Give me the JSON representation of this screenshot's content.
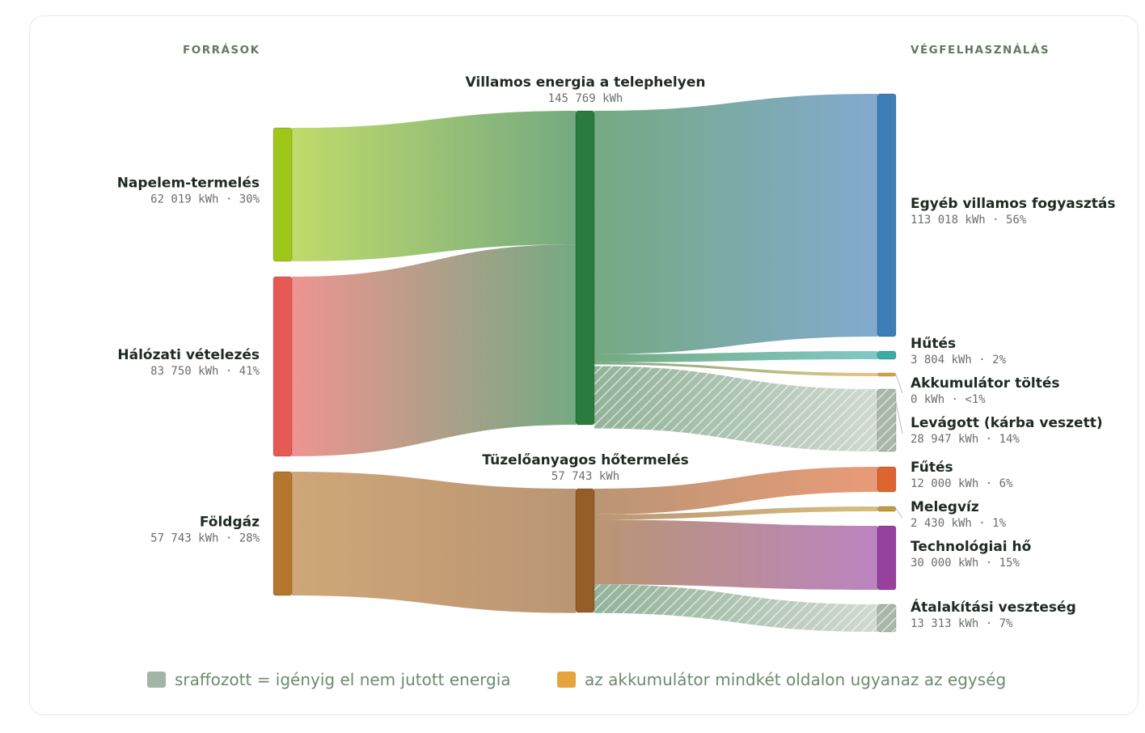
{
  "chart_data": {
    "type": "sankey",
    "unit": "kWh",
    "column_headers": {
      "left": "FORRÁSOK",
      "right": "VÉGFELHASZNÁLÁS"
    },
    "nodes": [
      {
        "id": "solar",
        "name": "Napelem-termelés",
        "value": 62019,
        "value_text": "62 019 kWh · 30%",
        "color": "#9ec71a",
        "column": "source"
      },
      {
        "id": "grid",
        "name": "Hálózati vételezés",
        "value": 83750,
        "value_text": "83 750 kWh · 41%",
        "color": "#e55a55",
        "column": "source"
      },
      {
        "id": "gas",
        "name": "Földgáz",
        "value": 57743,
        "value_text": "57 743 kWh · 28%",
        "color": "#b5762e",
        "column": "source"
      },
      {
        "id": "elec",
        "name": "Villamos energia a telephelyen",
        "value": 145769,
        "value_text": "145 769 kWh",
        "color": "#2a7c3e",
        "column": "hub"
      },
      {
        "id": "fuel",
        "name": "Tüzelőanyagos hőtermelés",
        "value": 57743,
        "value_text": "57 743 kWh",
        "color": "#955d28",
        "column": "hub"
      },
      {
        "id": "other",
        "name": "Egyéb villamos fogyasztás",
        "value": 113018,
        "value_text": "113 018 kWh · 56%",
        "color": "#3e7db5",
        "column": "end"
      },
      {
        "id": "cool",
        "name": "Hűtés",
        "value": 3804,
        "value_text": "3 804 kWh · 2%",
        "color": "#3aaba6",
        "column": "end"
      },
      {
        "id": "batt",
        "name": "Akkumulátor töltés",
        "value": 0,
        "value_text": "0 kWh · <1%",
        "color": "#d9a441",
        "column": "end"
      },
      {
        "id": "curt",
        "name": "Levágott (kárba veszett)",
        "value": 28947,
        "value_text": "28 947 kWh · 14%",
        "color": "#a8b8a8",
        "column": "end",
        "hatched": true
      },
      {
        "id": "heat",
        "name": "Fűtés",
        "value": 12000,
        "value_text": "12 000 kWh · 6%",
        "color": "#dd6530",
        "column": "end"
      },
      {
        "id": "dhw",
        "name": "Melegvíz",
        "value": 2430,
        "value_text": "2 430 kWh · 1%",
        "color": "#c39a3c",
        "column": "end"
      },
      {
        "id": "proc",
        "name": "Technológiai hő",
        "value": 30000,
        "value_text": "30 000 kWh · 15%",
        "color": "#96419e",
        "column": "end"
      },
      {
        "id": "loss",
        "name": "Átalakítási veszteség",
        "value": 13313,
        "value_text": "13 313 kWh · 7%",
        "color": "#a8b8a8",
        "column": "end",
        "hatched": true
      }
    ],
    "links": [
      {
        "source": "solar",
        "target": "elec",
        "value": 62019
      },
      {
        "source": "grid",
        "target": "elec",
        "value": 83750
      },
      {
        "source": "gas",
        "target": "fuel",
        "value": 57743
      },
      {
        "source": "elec",
        "target": "other",
        "value": 113018
      },
      {
        "source": "elec",
        "target": "cool",
        "value": 3804
      },
      {
        "source": "elec",
        "target": "batt",
        "value": 0
      },
      {
        "source": "elec",
        "target": "curt",
        "value": 28947,
        "hatched": true
      },
      {
        "source": "fuel",
        "target": "heat",
        "value": 12000
      },
      {
        "source": "fuel",
        "target": "dhw",
        "value": 2430
      },
      {
        "source": "fuel",
        "target": "proc",
        "value": 30000
      },
      {
        "source": "fuel",
        "target": "loss",
        "value": 13313,
        "hatched": true
      }
    ],
    "legend": [
      {
        "label": "sraffozott = igényig el nem jutott energia",
        "color": "#a3b5a4"
      },
      {
        "label": "az akkumulátor mindkét oldalon ugyanaz az egység",
        "color": "#e6a43e"
      }
    ]
  }
}
